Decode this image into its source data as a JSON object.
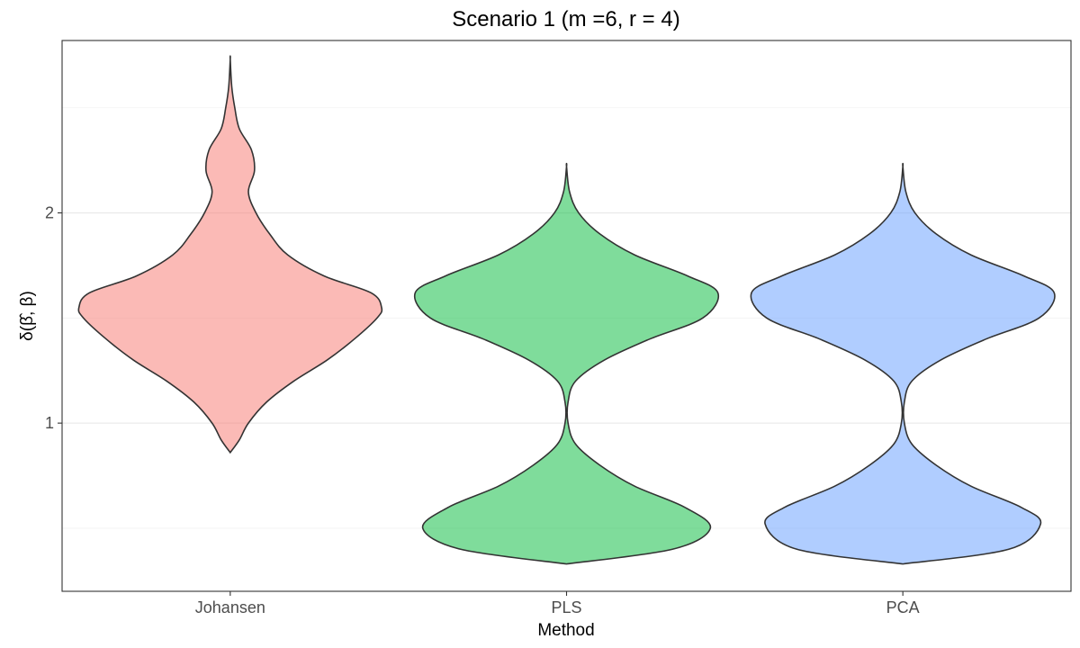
{
  "chart_data": {
    "type": "violin",
    "title": "Scenario 1 (m =6, r = 4)",
    "xlabel": "Method",
    "ylabel": "δ(β̂, β)",
    "categories": [
      "Johansen",
      "PLS",
      "PCA"
    ],
    "colors": [
      "#F8766D",
      "#00BA38",
      "#619CFF"
    ],
    "ylim": [
      0.2,
      2.82
    ],
    "yticks": [
      1,
      2
    ],
    "ytick_labels": [
      "1",
      "2"
    ],
    "grid": true,
    "legend": "none",
    "series": [
      {
        "category": "Johansen",
        "min": 0.86,
        "max": 2.73,
        "density_profile": [
          [
            0.86,
            0.0
          ],
          [
            0.92,
            0.06
          ],
          [
            1.0,
            0.12
          ],
          [
            1.1,
            0.24
          ],
          [
            1.2,
            0.42
          ],
          [
            1.3,
            0.64
          ],
          [
            1.4,
            0.82
          ],
          [
            1.5,
            0.97
          ],
          [
            1.55,
            1.0
          ],
          [
            1.62,
            0.93
          ],
          [
            1.7,
            0.62
          ],
          [
            1.8,
            0.38
          ],
          [
            1.9,
            0.26
          ],
          [
            2.0,
            0.17
          ],
          [
            2.1,
            0.12
          ],
          [
            2.2,
            0.16
          ],
          [
            2.3,
            0.14
          ],
          [
            2.4,
            0.06
          ],
          [
            2.5,
            0.03
          ],
          [
            2.6,
            0.01
          ],
          [
            2.73,
            0.0
          ]
        ]
      },
      {
        "category": "PLS",
        "min": 0.33,
        "max": 2.22,
        "density_profile": [
          [
            0.33,
            0.0
          ],
          [
            0.4,
            0.7
          ],
          [
            0.5,
            0.95
          ],
          [
            0.6,
            0.78
          ],
          [
            0.7,
            0.45
          ],
          [
            0.8,
            0.22
          ],
          [
            0.9,
            0.06
          ],
          [
            1.0,
            0.01
          ],
          [
            1.1,
            0.01
          ],
          [
            1.2,
            0.06
          ],
          [
            1.3,
            0.25
          ],
          [
            1.4,
            0.55
          ],
          [
            1.5,
            0.9
          ],
          [
            1.62,
            1.0
          ],
          [
            1.7,
            0.8
          ],
          [
            1.8,
            0.45
          ],
          [
            1.9,
            0.22
          ],
          [
            2.0,
            0.08
          ],
          [
            2.1,
            0.02
          ],
          [
            2.22,
            0.0
          ]
        ]
      },
      {
        "category": "PCA",
        "min": 0.33,
        "max": 2.22,
        "density_profile": [
          [
            0.33,
            0.0
          ],
          [
            0.4,
            0.7
          ],
          [
            0.52,
            0.91
          ],
          [
            0.6,
            0.78
          ],
          [
            0.7,
            0.45
          ],
          [
            0.8,
            0.22
          ],
          [
            0.9,
            0.06
          ],
          [
            1.0,
            0.01
          ],
          [
            1.1,
            0.01
          ],
          [
            1.2,
            0.06
          ],
          [
            1.3,
            0.25
          ],
          [
            1.4,
            0.55
          ],
          [
            1.5,
            0.9
          ],
          [
            1.62,
            1.0
          ],
          [
            1.7,
            0.8
          ],
          [
            1.8,
            0.45
          ],
          [
            1.9,
            0.22
          ],
          [
            2.0,
            0.08
          ],
          [
            2.1,
            0.02
          ],
          [
            2.22,
            0.0
          ]
        ]
      }
    ]
  }
}
